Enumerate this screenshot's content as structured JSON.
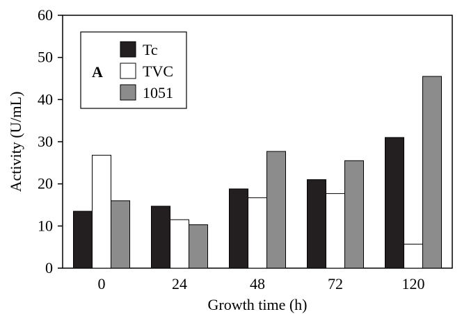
{
  "chart_data": {
    "type": "bar",
    "panel_label": "A",
    "xlabel": "Growth time (h)",
    "ylabel": "Activity (U/mL)",
    "ylim": [
      0,
      60
    ],
    "yticks": [
      0,
      10,
      20,
      30,
      40,
      50,
      60
    ],
    "categories": [
      "0",
      "24",
      "48",
      "72",
      "120"
    ],
    "series": [
      {
        "name": "Tc",
        "color": "#231f20",
        "values": [
          13.5,
          14.7,
          18.8,
          21.0,
          31.0
        ]
      },
      {
        "name": "TVC",
        "color": "#ffffff",
        "values": [
          26.8,
          11.5,
          16.7,
          17.7,
          5.7
        ]
      },
      {
        "name": "1051",
        "color": "#8c8c8c",
        "values": [
          16.0,
          10.3,
          27.7,
          25.5,
          45.5
        ]
      }
    ],
    "legend_position": "top-left",
    "grid": false
  }
}
